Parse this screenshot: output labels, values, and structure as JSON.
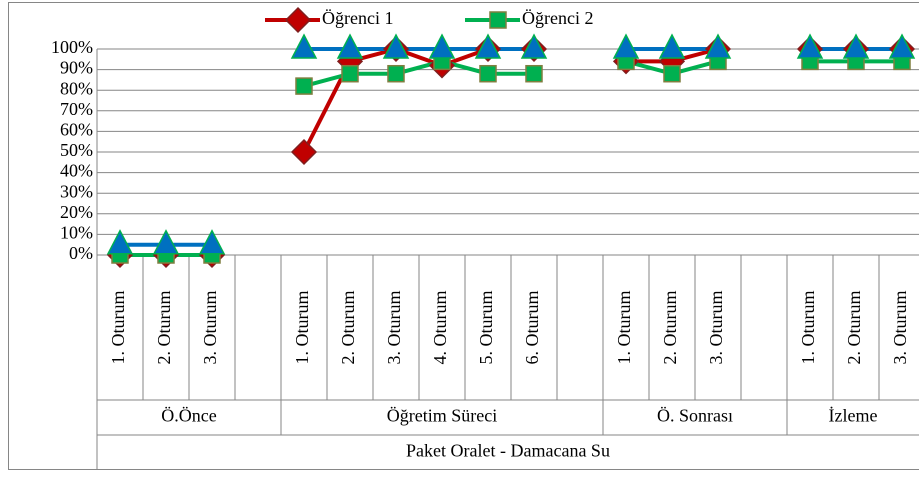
{
  "chart_data": {
    "type": "line",
    "categories": [
      "1. Oturum",
      "2. Oturum",
      "3. Oturum",
      null,
      "1. Oturum",
      "2. Oturum",
      "3. Oturum",
      "4. Oturum",
      "5. Oturum",
      "6. Oturum",
      null,
      "1. Oturum",
      "2. Oturum",
      "3. Oturum",
      null,
      "1. Oturum",
      "2. Oturum",
      "3. Oturum"
    ],
    "groups": [
      {
        "label": "Ö.Önce",
        "span": 4
      },
      {
        "label": "Öğretim Süreci",
        "span": 7
      },
      {
        "label": "Ö. Sonrası",
        "span": 4
      },
      {
        "label": "İzleme",
        "span": 3
      }
    ],
    "supergroup": "Paket Oralet - Damacana Su",
    "series": [
      {
        "name": "Öğrenci 1",
        "color": "#c00000",
        "marker": "diamond",
        "values": [
          0,
          0,
          0,
          null,
          50,
          94,
          100,
          92,
          100,
          100,
          null,
          94,
          94,
          100,
          null,
          100,
          100,
          100
        ]
      },
      {
        "name": "Öğrenci 2",
        "color": "#00b050",
        "marker": "square",
        "values": [
          0,
          0,
          0,
          null,
          82,
          88,
          88,
          94,
          88,
          88,
          null,
          94,
          88,
          94,
          null,
          94,
          94,
          94
        ]
      },
      {
        "color": "#0070c0",
        "marker": "triangle",
        "values": [
          5,
          5,
          5,
          null,
          100,
          100,
          100,
          100,
          100,
          100,
          null,
          100,
          100,
          100,
          null,
          100,
          100,
          100
        ]
      }
    ],
    "ylim": [
      0,
      100
    ],
    "yticks": [
      {
        "value": 0,
        "label": "0%"
      },
      {
        "value": 10,
        "label": "10%"
      },
      {
        "value": 20,
        "label": "20%"
      },
      {
        "value": 30,
        "label": "30%"
      },
      {
        "value": 40,
        "label": "40%"
      },
      {
        "value": 50,
        "label": "50%"
      },
      {
        "value": 60,
        "label": "60%"
      },
      {
        "value": 70,
        "label": "70%"
      },
      {
        "value": 80,
        "label": "80%"
      },
      {
        "value": 90,
        "label": "90%"
      },
      {
        "value": 100,
        "label": "100%"
      }
    ],
    "grid": true,
    "legend": "top"
  }
}
